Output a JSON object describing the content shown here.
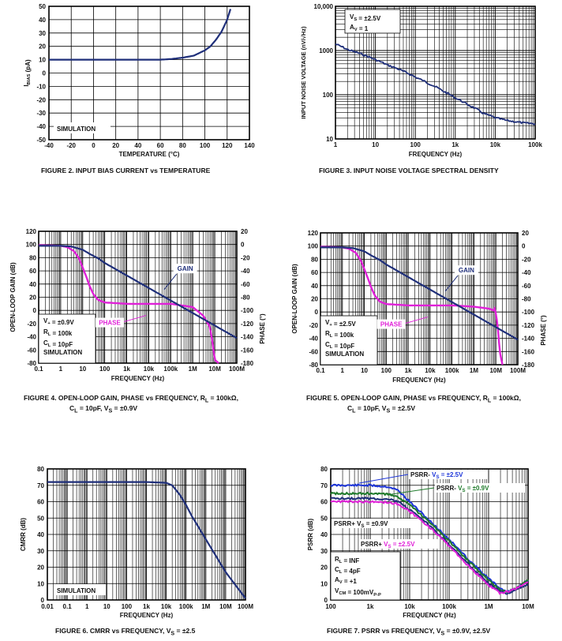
{
  "colors": {
    "gain": "#1f2f7a",
    "phase": "#e020d8",
    "s25": "#1d35d8",
    "s09": "#1e7a2a",
    "grid": "#000000"
  },
  "captions": {
    "fig2": "FIGURE 2.  INPUT BIAS CURRENT vs TEMPERATURE",
    "fig3": "FIGURE 3.  INPUT NOISE VOLTAGE SPECTRAL DENSITY",
    "fig4a": "FIGURE 4.  OPEN-LOOP GAIN, PHASE vs FREQUENCY, R",
    "fig4b": "L",
    "fig4c": " = 100kΩ,",
    "fig4d": "C",
    "fig4e": "L",
    "fig4f": " = 10pF, V",
    "fig4g": "S",
    "fig4h": " = ±0.9V",
    "fig5a": "FIGURE 5.  OPEN-LOOP GAIN, PHASE vs FREQUENCY, R",
    "fig5b": "L",
    "fig5c": " = 100kΩ,",
    "fig5d": "C",
    "fig5e": "L",
    "fig5f": " = 10pF, V",
    "fig5g": "S",
    "fig5h": " = ±2.5V",
    "fig6a": "FIGURE 6.  CMRR vs FREQUENCY, V",
    "fig6b": "S",
    "fig6c": " = ±2.5",
    "fig7a": "FIGURE 7.  PSRR vs FREQUENCY, V",
    "fig7b": "S",
    "fig7c": " = ±0.9V, ±2.5V"
  },
  "chart_data": [
    {
      "id": "fig2",
      "type": "line",
      "xlabel": "TEMPERATURE (°C)",
      "ylabel": "IBIAS (pA)",
      "xlim": [
        -40,
        140
      ],
      "ylim": [
        -50,
        50
      ],
      "xticks": [
        -40,
        -20,
        0,
        20,
        40,
        60,
        80,
        100,
        120,
        140
      ],
      "yticks": [
        -50,
        -40,
        -30,
        -20,
        -10,
        0,
        10,
        20,
        30,
        40,
        50
      ],
      "annotation": "SIMULATION",
      "series": [
        {
          "x": [
            -40,
            -20,
            0,
            20,
            40,
            60,
            70,
            80,
            90,
            100,
            105,
            110,
            115,
            120,
            123
          ],
          "values": [
            10,
            10,
            10,
            10,
            10,
            10,
            10.5,
            11.5,
            13,
            17,
            20,
            25,
            31,
            40,
            48
          ]
        }
      ]
    },
    {
      "id": "fig3",
      "type": "line",
      "xscale": "log",
      "yscale": "log",
      "xlabel": "FREQUENCY (Hz)",
      "ylabel": "INPUT NOISE VOLTAGE (nV/√Hz)",
      "xlim": [
        1,
        100000
      ],
      "ylim": [
        10,
        10000
      ],
      "xticklabels": [
        "1",
        "10",
        "100",
        "1k",
        "10k",
        "100k"
      ],
      "yticklabels": [
        "10",
        "100",
        "1000",
        "10,000"
      ],
      "legend": [
        "V",
        "S",
        "= ±2.5V",
        "A",
        "V",
        "= 1"
      ],
      "series": [
        {
          "x": [
            1,
            2,
            5,
            10,
            20,
            50,
            100,
            200,
            500,
            1000,
            2000,
            5000,
            10000,
            20000,
            50000,
            100000
          ],
          "values": [
            1400,
            1050,
            800,
            620,
            470,
            340,
            250,
            185,
            120,
            85,
            60,
            38,
            30,
            26,
            23,
            22
          ]
        }
      ]
    },
    {
      "id": "fig4",
      "type": "line",
      "xscale": "log",
      "xlabel": "FREQUENCY (Hz)",
      "ylabel": "OPEN-LOOP GAIN (dB)",
      "y2label": "PHASE (°)",
      "xlim": [
        0.1,
        100000000
      ],
      "ylim": [
        -80,
        120
      ],
      "y2lim": [
        -180,
        20
      ],
      "xticklabels": [
        "0.1",
        "1",
        "10",
        "100",
        "1k",
        "10k",
        "100k",
        "1M",
        "10M",
        "100M"
      ],
      "yticks": [
        -80,
        -60,
        -40,
        -20,
        0,
        20,
        40,
        60,
        80,
        100,
        120
      ],
      "y2ticks": [
        -180,
        -160,
        -140,
        -120,
        -100,
        -80,
        -60,
        -40,
        -20,
        0,
        20
      ],
      "legend": [
        "V",
        "+",
        "= ±0.9V",
        "R",
        "L",
        "= 100k",
        "C",
        "L",
        "= 10pF",
        "SIMULATION"
      ],
      "labels": {
        "gain": "GAIN",
        "phase": "PHASE"
      },
      "series": [
        {
          "name": "GAIN",
          "x": [
            0.1,
            1,
            3,
            10,
            20,
            50,
            100,
            1000,
            10000,
            100000,
            1000000,
            10000000,
            100000000
          ],
          "values": [
            98,
            98,
            97,
            92,
            86,
            79,
            72,
            53,
            34,
            15,
            -4,
            -23,
            -42
          ]
        },
        {
          "name": "PHASE",
          "axis": "y2",
          "x": [
            0.1,
            1,
            2,
            4,
            7,
            10,
            15,
            20,
            30,
            50,
            100,
            1000,
            10000,
            100000,
            1000000,
            3000000,
            6000000,
            8000000,
            10000000,
            15000000
          ],
          "values": [
            -1,
            -2,
            -4,
            -10,
            -22,
            -35,
            -50,
            -62,
            -75,
            -84,
            -88,
            -90,
            -90,
            -90,
            -95,
            -108,
            -125,
            -150,
            -175,
            -180
          ]
        }
      ]
    },
    {
      "id": "fig5",
      "type": "line",
      "xscale": "log",
      "xlabel": "FREQUENCY (Hz)",
      "ylabel": "OPEN-LOOP GAIN (dB)",
      "y2label": "PHASE (°)",
      "xlim": [
        0.1,
        100000000
      ],
      "ylim": [
        -80,
        120
      ],
      "y2lim": [
        -180,
        20
      ],
      "xticklabels": [
        "0.1",
        "1",
        "10",
        "100",
        "1k",
        "10k",
        "100k",
        "1M",
        "10M",
        "100M"
      ],
      "yticks": [
        -80,
        -60,
        -40,
        -20,
        0,
        20,
        40,
        60,
        80,
        100,
        120
      ],
      "y2ticks": [
        -180,
        -160,
        -140,
        -120,
        -100,
        -80,
        -60,
        -40,
        -20,
        0,
        20
      ],
      "legend": [
        "V",
        "+",
        "= ±2.5V",
        "R",
        "L",
        "= 100k",
        "C",
        "L",
        "= 10pF",
        "SIMULATION"
      ],
      "labels": {
        "gain": "GAIN",
        "phase": "PHASE"
      },
      "series": [
        {
          "name": "GAIN",
          "x": [
            0.1,
            1,
            3,
            10,
            20,
            50,
            100,
            1000,
            10000,
            100000,
            1000000,
            10000000,
            100000000
          ],
          "values": [
            98,
            98,
            97,
            92,
            86,
            79,
            72,
            53,
            34,
            15,
            -4,
            -23,
            -42
          ]
        },
        {
          "name": "PHASE",
          "axis": "y2",
          "x": [
            0.1,
            1,
            2,
            4,
            7,
            10,
            15,
            20,
            30,
            50,
            100,
            1000,
            10000,
            100000,
            1000000,
            5000000,
            8000000,
            9000000,
            12000000,
            15000000,
            20000000
          ],
          "values": [
            -1,
            -2,
            -4,
            -10,
            -22,
            -35,
            -50,
            -62,
            -75,
            -84,
            -88,
            -90,
            -90,
            -90,
            -92,
            -95,
            -98,
            -93,
            -120,
            -160,
            -180
          ]
        }
      ]
    },
    {
      "id": "fig6",
      "type": "line",
      "xscale": "log",
      "xlabel": "FREQUENCY (Hz)",
      "ylabel": "CMRR (dB)",
      "xlim": [
        0.01,
        100000000
      ],
      "ylim": [
        0,
        80
      ],
      "xticklabels": [
        "0.01",
        "0.1",
        "1",
        "10",
        "100",
        "1k",
        "10k",
        "100k",
        "1M",
        "10M",
        "100M"
      ],
      "yticks": [
        0,
        10,
        20,
        30,
        40,
        50,
        60,
        70,
        80
      ],
      "annotation": "SIMULATION",
      "series": [
        {
          "x": [
            0.01,
            0.1,
            1,
            10,
            100,
            1000,
            10000,
            20000,
            50000,
            100000,
            200000,
            1000000,
            10000000,
            100000000
          ],
          "values": [
            72,
            72,
            72,
            72,
            72,
            72,
            71.5,
            70,
            64,
            58,
            51,
            37,
            17,
            1
          ]
        }
      ]
    },
    {
      "id": "fig7",
      "type": "line",
      "xscale": "log",
      "xlabel": "FREQUENCY (Hz)",
      "ylabel": "PSRR (dB)",
      "xlim": [
        100,
        10000000
      ],
      "ylim": [
        0,
        80
      ],
      "xticklabels": [
        "100",
        "1k",
        "10k",
        "100k",
        "1M",
        "10M"
      ],
      "yticks": [
        0,
        10,
        20,
        30,
        40,
        50,
        60,
        70,
        80
      ],
      "legend": [
        "R",
        "L",
        "= INF",
        "C",
        "L",
        "= 4pF",
        "A",
        "V",
        "= +1",
        "V",
        "CM",
        "= 100mV",
        "P-P"
      ],
      "labels": [
        {
          "a": "PSRR- ",
          "b": "V",
          "c": "S",
          "d": "= ±2.5V"
        },
        {
          "a": "PSRR- ",
          "b": "V",
          "c": "S",
          "d": "= ±0.9V"
        },
        {
          "a": "PSRR+ ",
          "b": "V",
          "c": "S",
          "d": "= ±0.9V"
        },
        {
          "a": "PSRR+ ",
          "b": "V",
          "c": "S",
          "d": "= ±2.5V"
        }
      ],
      "series": [
        {
          "name": "PSRR- VS = ±2.5V",
          "x": [
            100,
            1000,
            3000,
            5000,
            10000,
            30000,
            100000,
            300000,
            1000000,
            2000000,
            3000000,
            5000000,
            10000000
          ],
          "values": [
            70,
            70,
            69,
            67,
            60,
            49,
            37,
            25,
            13,
            7,
            5,
            7,
            12
          ]
        },
        {
          "name": "PSRR- VS = ±0.9V",
          "x": [
            100,
            1000,
            3000,
            5000,
            10000,
            30000,
            100000,
            300000,
            1000000,
            2000000,
            3000000,
            5000000,
            10000000
          ],
          "values": [
            65,
            65,
            64.5,
            63,
            58,
            48,
            36,
            24,
            12,
            6,
            5,
            7,
            12
          ]
        },
        {
          "name": "PSRR+ VS = ±0.9V",
          "x": [
            100,
            1000,
            3000,
            5000,
            10000,
            30000,
            100000,
            300000,
            1000000,
            2000000,
            3000000,
            5000000,
            10000000
          ],
          "values": [
            62,
            62,
            61.5,
            60,
            55,
            46,
            34,
            22,
            10,
            5,
            4,
            6,
            10
          ]
        },
        {
          "name": "PSRR+ VS = ±2.5V",
          "x": [
            100,
            1000,
            3000,
            5000,
            10000,
            30000,
            100000,
            300000,
            1000000,
            2000000,
            3000000,
            5000000,
            10000000
          ],
          "values": [
            60,
            60,
            59.5,
            58.5,
            54,
            45,
            33,
            21,
            9,
            4,
            5,
            7,
            11
          ]
        }
      ]
    }
  ]
}
